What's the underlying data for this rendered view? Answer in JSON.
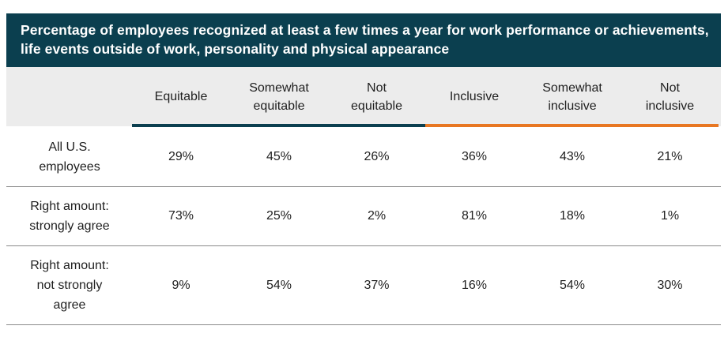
{
  "chart_data": {
    "type": "table",
    "title": "Percentage of employees recognized at least a few times a year for work performance or achievements, life events outside of work, personality and physical appearance",
    "columns": [
      "Equitable",
      "Somewhat equitable",
      "Not equitable",
      "Inclusive",
      "Somewhat inclusive",
      "Not inclusive"
    ],
    "column_lines": [
      [
        "Equitable"
      ],
      [
        "Somewhat",
        "equitable"
      ],
      [
        "Not",
        "equitable"
      ],
      [
        "Inclusive"
      ],
      [
        "Somewhat",
        "inclusive"
      ],
      [
        "Not",
        "inclusive"
      ]
    ],
    "rows": [
      {
        "label": "All U.S. employees",
        "label_lines": [
          "All U.S.",
          "employees"
        ],
        "values": [
          "29%",
          "45%",
          "26%",
          "36%",
          "43%",
          "21%"
        ]
      },
      {
        "label": "Right amount: strongly agree",
        "label_lines": [
          "Right amount:",
          "strongly agree"
        ],
        "values": [
          "73%",
          "25%",
          "2%",
          "81%",
          "18%",
          "1%"
        ]
      },
      {
        "label": "Right amount: not strongly agree",
        "label_lines": [
          "Right amount:",
          "not strongly",
          "agree"
        ],
        "values": [
          "9%",
          "54%",
          "37%",
          "16%",
          "54%",
          "30%"
        ]
      }
    ],
    "colors": {
      "title_background": "#0b3f4f",
      "header_background": "#ececec",
      "equitable_group_rule": "#0b3f4f",
      "inclusive_group_rule": "#e87722"
    }
  }
}
